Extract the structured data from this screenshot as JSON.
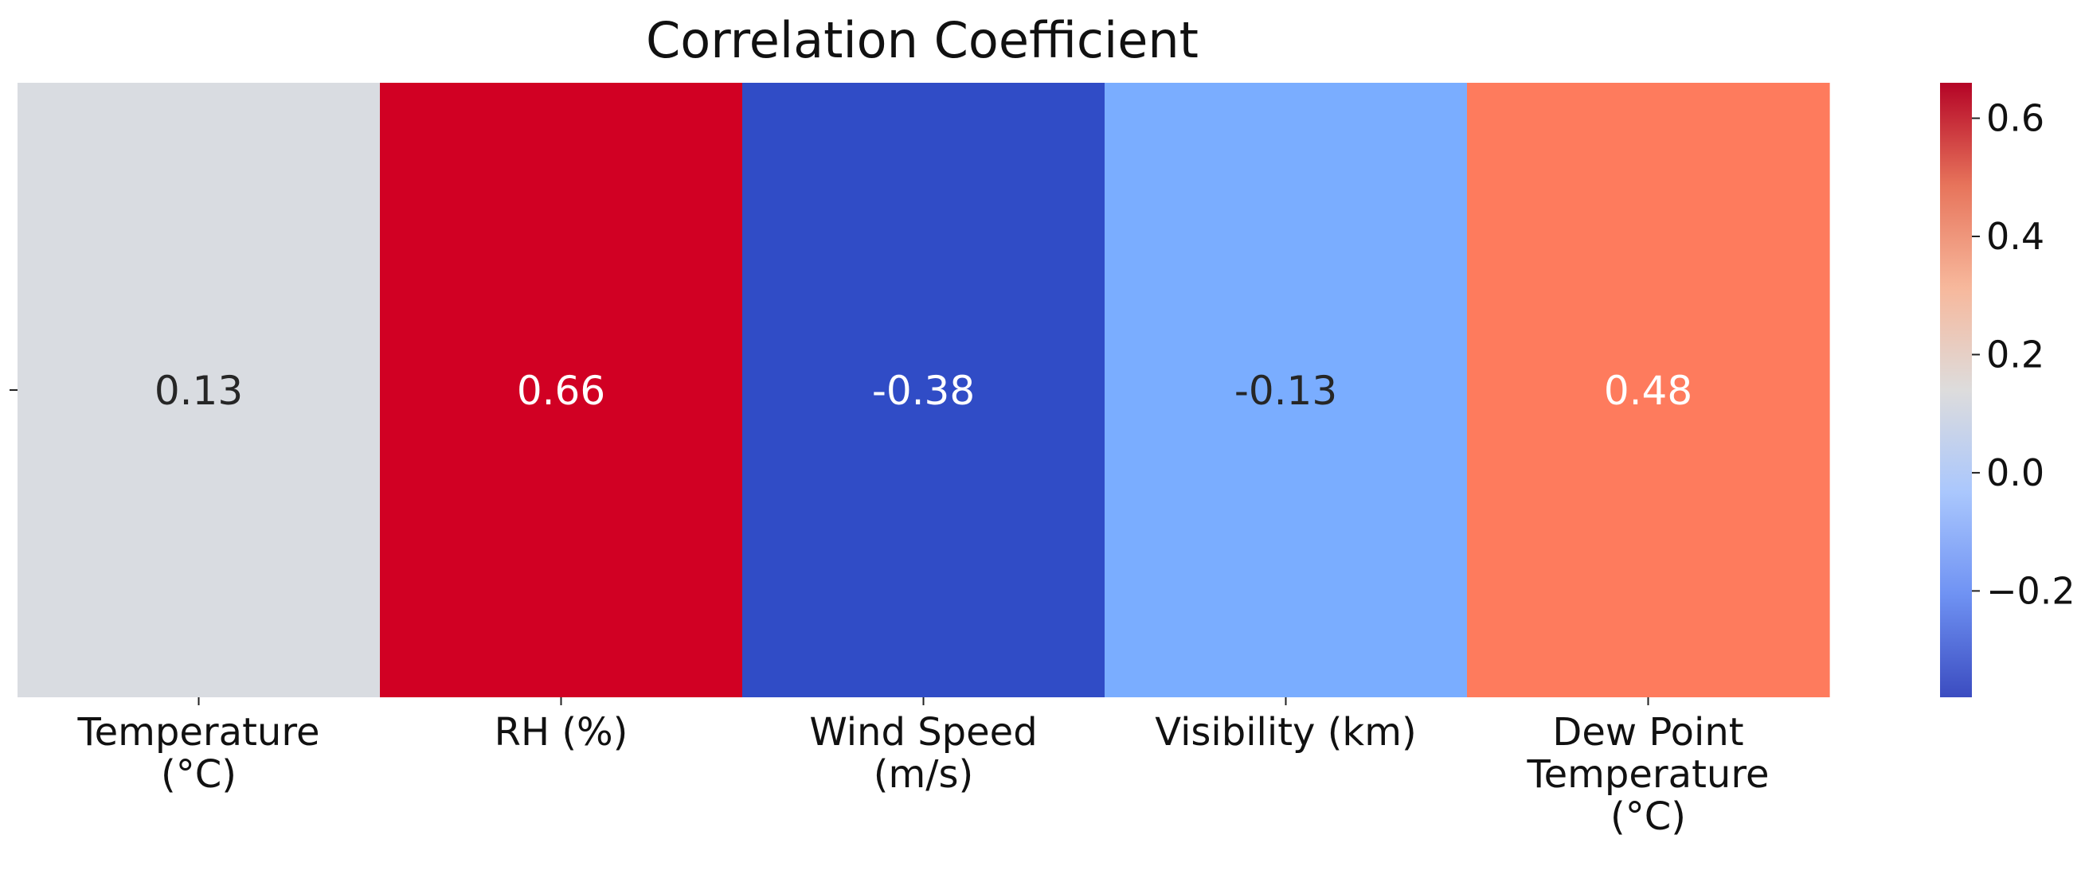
{
  "chart_data": {
    "type": "heatmap",
    "title": "Correlation Coefficient",
    "xlabel": "",
    "ylabel": "",
    "columns": [
      {
        "label_lines": [
          "Temperature",
          "(°C)"
        ],
        "value": 0.13,
        "value_label": "0.13",
        "color": "#d9dce1",
        "text_color": "#262626"
      },
      {
        "label_lines": [
          "RH  (%)"
        ],
        "value": 0.66,
        "value_label": "0.66",
        "color": "#d10023",
        "text_color": "#ffffff"
      },
      {
        "label_lines": [
          "Wind Speed",
          "(m/s)"
        ],
        "value": -0.38,
        "value_label": "-0.38",
        "color": "#304cc6",
        "text_color": "#ffffff"
      },
      {
        "label_lines": [
          "Visibility (km)"
        ],
        "value": -0.13,
        "value_label": "-0.13",
        "color": "#7aadff",
        "text_color": "#262626"
      },
      {
        "label_lines": [
          "Dew Point",
          "Temperature",
          "(°C)"
        ],
        "value": 0.48,
        "value_label": "0.48",
        "color": "#fe7b5d",
        "text_color": "#ffffff"
      }
    ],
    "colorbar": {
      "range": [
        -0.38,
        0.66
      ],
      "ticks": [
        {
          "value": 0.6,
          "label": "0.6"
        },
        {
          "value": 0.4,
          "label": "0.4"
        },
        {
          "value": 0.2,
          "label": "0.2"
        },
        {
          "value": 0.0,
          "label": "0.0"
        },
        {
          "value": -0.2,
          "label": "−0.2"
        }
      ],
      "colormap": "coolwarm",
      "stops": [
        "#3b4cc0",
        "#6f92f3",
        "#aac7fd",
        "#dddcdc",
        "#f7b89c",
        "#e7745b",
        "#b40426"
      ]
    },
    "grid": false
  }
}
